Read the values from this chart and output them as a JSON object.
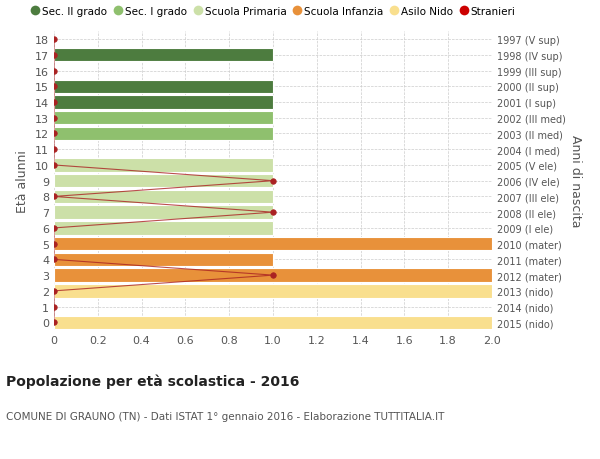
{
  "ages": [
    0,
    1,
    2,
    3,
    4,
    5,
    6,
    7,
    8,
    9,
    10,
    11,
    12,
    13,
    14,
    15,
    16,
    17,
    18
  ],
  "right_labels": [
    "2015 (nido)",
    "2014 (nido)",
    "2013 (nido)",
    "2012 (mater)",
    "2011 (mater)",
    "2010 (mater)",
    "2009 (I ele)",
    "2008 (II ele)",
    "2007 (III ele)",
    "2006 (IV ele)",
    "2005 (V ele)",
    "2004 (I med)",
    "2003 (II med)",
    "2002 (III med)",
    "2001 (I sup)",
    "2000 (II sup)",
    "1999 (III sup)",
    "1998 (IV sup)",
    "1997 (V sup)"
  ],
  "bar_widths": [
    2.0,
    0.0,
    2.0,
    2.0,
    1.0,
    2.0,
    1.0,
    1.0,
    1.0,
    1.0,
    1.0,
    0.0,
    1.0,
    1.0,
    1.0,
    1.0,
    0.0,
    1.0,
    0.0
  ],
  "bar_colors": [
    "#f9df8e",
    "#f9df8e",
    "#f9df8e",
    "#e8913a",
    "#e8913a",
    "#e8913a",
    "#cce0a8",
    "#cce0a8",
    "#cce0a8",
    "#cce0a8",
    "#cce0a8",
    "#8fc06e",
    "#8fc06e",
    "#8fc06e",
    "#4d7c3f",
    "#4d7c3f",
    "#4d7c3f",
    "#4d7c3f",
    "#4d7c3f"
  ],
  "stranieri_x": [
    0.0,
    0.0,
    0.0,
    1.0,
    0.0,
    0.0,
    0.0,
    1.0,
    0.0,
    1.0,
    0.0,
    0.0,
    0.0,
    0.0,
    0.0,
    0.0,
    0.0,
    0.0,
    0.0
  ],
  "stranieri_y": [
    0,
    1,
    2,
    3,
    4,
    5,
    6,
    7,
    8,
    9,
    10,
    11,
    12,
    13,
    14,
    15,
    16,
    17,
    18
  ],
  "xlim": [
    0,
    2.0
  ],
  "ylim": [
    -0.5,
    18.5
  ],
  "xticks": [
    0,
    0.2,
    0.4,
    0.6,
    0.8,
    1.0,
    1.2,
    1.4,
    1.6,
    1.8,
    2.0
  ],
  "xtick_labels": [
    "0",
    "0.2",
    "0.4",
    "0.6",
    "0.8",
    "1.0",
    "1.2",
    "1.4",
    "1.6",
    "1.8",
    "2.0"
  ],
  "yticks": [
    0,
    1,
    2,
    3,
    4,
    5,
    6,
    7,
    8,
    9,
    10,
    11,
    12,
    13,
    14,
    15,
    16,
    17,
    18
  ],
  "ylabel_left": "Età alunni",
  "ylabel_right": "Anni di nascita",
  "legend_labels": [
    "Sec. II grado",
    "Sec. I grado",
    "Scuola Primaria",
    "Scuola Infanzia",
    "Asilo Nido",
    "Stranieri"
  ],
  "legend_colors": [
    "#4d7c3f",
    "#8fc06e",
    "#cce0a8",
    "#e8913a",
    "#f9df8e",
    "#cc0000"
  ],
  "title": "Popolazione per età scolastica - 2016",
  "subtitle": "COMUNE DI GRAUNO (TN) - Dati ISTAT 1° gennaio 2016 - Elaborazione TUTTITALIA.IT",
  "bar_height": 0.85,
  "stranieri_color": "#aa2222",
  "grid_color": "#cccccc",
  "bg_color": "#ffffff"
}
